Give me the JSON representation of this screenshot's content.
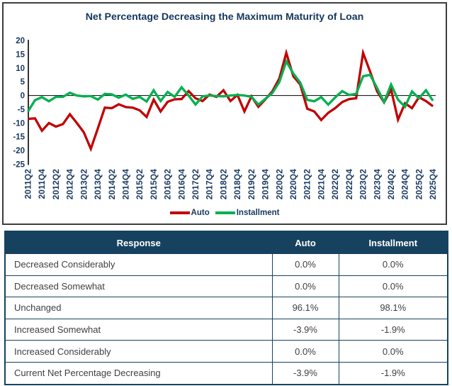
{
  "chart": {
    "title": "Net Percentage Decreasing the Maximum Maturity of Loan"
  },
  "chart_data": {
    "type": "line",
    "title": "Net Percentage Decreasing the Maximum Maturity of Loan",
    "ylim": [
      -25,
      20
    ],
    "ytick_step": 5,
    "grid": false,
    "legend_position": "bottom",
    "x": [
      "2011Q2",
      "2011Q3",
      "2011Q4",
      "2012Q1",
      "2012Q2",
      "2012Q3",
      "2012Q4",
      "2013Q1",
      "2013Q2",
      "2013Q3",
      "2013Q4",
      "2014Q1",
      "2014Q2",
      "2014Q3",
      "2014Q4",
      "2015Q1",
      "2015Q2",
      "2015Q3",
      "2015Q4",
      "2016Q1",
      "2016Q2",
      "2016Q3",
      "2016Q4",
      "2017Q1",
      "2017Q2",
      "2017Q3",
      "2017Q4",
      "2018Q1",
      "2018Q2",
      "2018Q3",
      "2018Q4",
      "2019Q1",
      "2019Q2",
      "2019Q3",
      "2019Q4",
      "2020Q1",
      "2020Q2",
      "2020Q3",
      "2020Q4",
      "2021Q1",
      "2021Q2",
      "2021Q3",
      "2021Q4",
      "2022Q1",
      "2022Q2",
      "2022Q3",
      "2022Q4",
      "2023Q1",
      "2023Q2",
      "2023Q3",
      "2023Q4",
      "2024Q1",
      "2024Q2",
      "2024Q3",
      "2024Q4",
      "2025Q1",
      "2025Q2",
      "2025Q3",
      "2025Q4"
    ],
    "series": [
      {
        "name": "Auto",
        "color": "#C00000",
        "values": [
          -8.5,
          -8.3,
          -12.8,
          -10.0,
          -11.3,
          -10.4,
          -6.8,
          -10.0,
          -13.4,
          -19.4,
          -12.0,
          -4.4,
          -4.6,
          -3.2,
          -4.2,
          -4.4,
          -5.4,
          -7.8,
          -1.5,
          -5.8,
          -2.3,
          -1.4,
          -1.3,
          1.6,
          -1.0,
          -2.0,
          0.3,
          -0.5,
          1.9,
          -2.0,
          0.2,
          -5.8,
          -0.3,
          -4.1,
          -1.4,
          1.5,
          6.2,
          15.5,
          7.0,
          4.0,
          -4.8,
          -5.8,
          -8.9,
          -6.3,
          -4.6,
          -2.4,
          -1.3,
          -1.0,
          15.5,
          8.7,
          1.5,
          -2.5,
          2.2,
          -8.8,
          -2.8,
          -4.6,
          -0.6,
          -2.0,
          -3.9
        ]
      },
      {
        "name": "Installment",
        "color": "#00B050",
        "values": [
          -5.8,
          -1.7,
          -0.6,
          -2.1,
          -0.5,
          -0.5,
          1.0,
          0.0,
          -0.3,
          -0.2,
          -1.5,
          0.6,
          0.4,
          -0.8,
          0.3,
          -1.2,
          -0.5,
          -2.2,
          1.9,
          -2.0,
          1.3,
          -0.5,
          3.0,
          0.0,
          -3.3,
          -0.3,
          0.0,
          -0.2,
          -0.3,
          0.0,
          0.2,
          0.0,
          -0.5,
          -3.3,
          -1.2,
          0.9,
          4.9,
          12.4,
          8.0,
          4.7,
          -1.6,
          -2.1,
          -0.6,
          -3.3,
          -0.7,
          1.6,
          0.2,
          0.6,
          7.0,
          7.5,
          2.7,
          -2.4,
          4.0,
          -1.5,
          -4.1,
          1.5,
          -1.0,
          1.9,
          -1.9
        ]
      }
    ]
  },
  "table": {
    "columns": [
      "Response",
      "Auto",
      "Installment"
    ],
    "rows": [
      {
        "response": "Decreased Considerably",
        "auto": "0.0%",
        "installment": "0.0%"
      },
      {
        "response": "Decreased Somewhat",
        "auto": "0.0%",
        "installment": "0.0%"
      },
      {
        "response": "Unchanged",
        "auto": "96.1%",
        "installment": "98.1%"
      },
      {
        "response": "Increased Somewhat",
        "auto": "-3.9%",
        "installment": "-1.9%"
      },
      {
        "response": "Increased Considerably",
        "auto": "0.0%",
        "installment": "0.0%"
      },
      {
        "response": "Current Net Percentage Decreasing",
        "auto": "-3.9%",
        "installment": "-1.9%"
      }
    ]
  }
}
